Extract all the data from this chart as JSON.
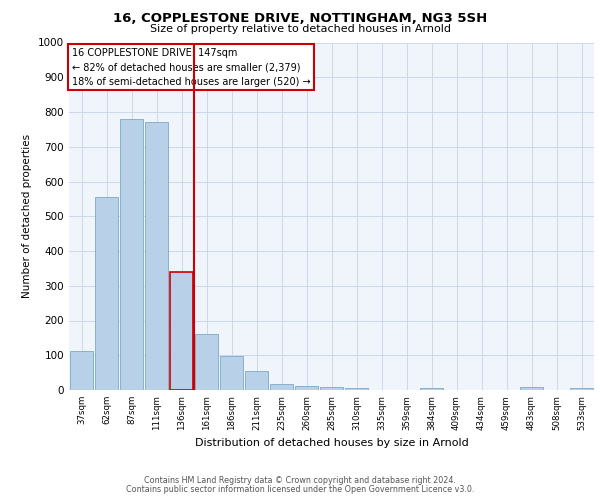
{
  "title": "16, COPPLESTONE DRIVE, NOTTINGHAM, NG3 5SH",
  "subtitle": "Size of property relative to detached houses in Arnold",
  "xlabel": "Distribution of detached houses by size in Arnold",
  "ylabel": "Number of detached properties",
  "categories": [
    "37sqm",
    "62sqm",
    "87sqm",
    "111sqm",
    "136sqm",
    "161sqm",
    "186sqm",
    "211sqm",
    "235sqm",
    "260sqm",
    "285sqm",
    "310sqm",
    "335sqm",
    "359sqm",
    "384sqm",
    "409sqm",
    "434sqm",
    "459sqm",
    "483sqm",
    "508sqm",
    "533sqm"
  ],
  "values": [
    112,
    554,
    779,
    770,
    340,
    160,
    97,
    55,
    16,
    11,
    8,
    5,
    0,
    0,
    6,
    0,
    0,
    0,
    8,
    0,
    5
  ],
  "bar_color": "#b8d0e8",
  "bar_edge_color": "#7aaac8",
  "highlight_bar_index": 4,
  "highlight_bar_edge_color": "#cc0000",
  "vline_color": "#cc0000",
  "annotation_box_text": "16 COPPLESTONE DRIVE: 147sqm\n← 82% of detached houses are smaller (2,379)\n18% of semi-detached houses are larger (520) →",
  "footer_line1": "Contains HM Land Registry data © Crown copyright and database right 2024.",
  "footer_line2": "Contains public sector information licensed under the Open Government Licence v3.0.",
  "bg_color": "#f0f4fb",
  "grid_color": "#ccd8ea",
  "ylim": [
    0,
    1000
  ],
  "yticks": [
    0,
    100,
    200,
    300,
    400,
    500,
    600,
    700,
    800,
    900,
    1000
  ]
}
